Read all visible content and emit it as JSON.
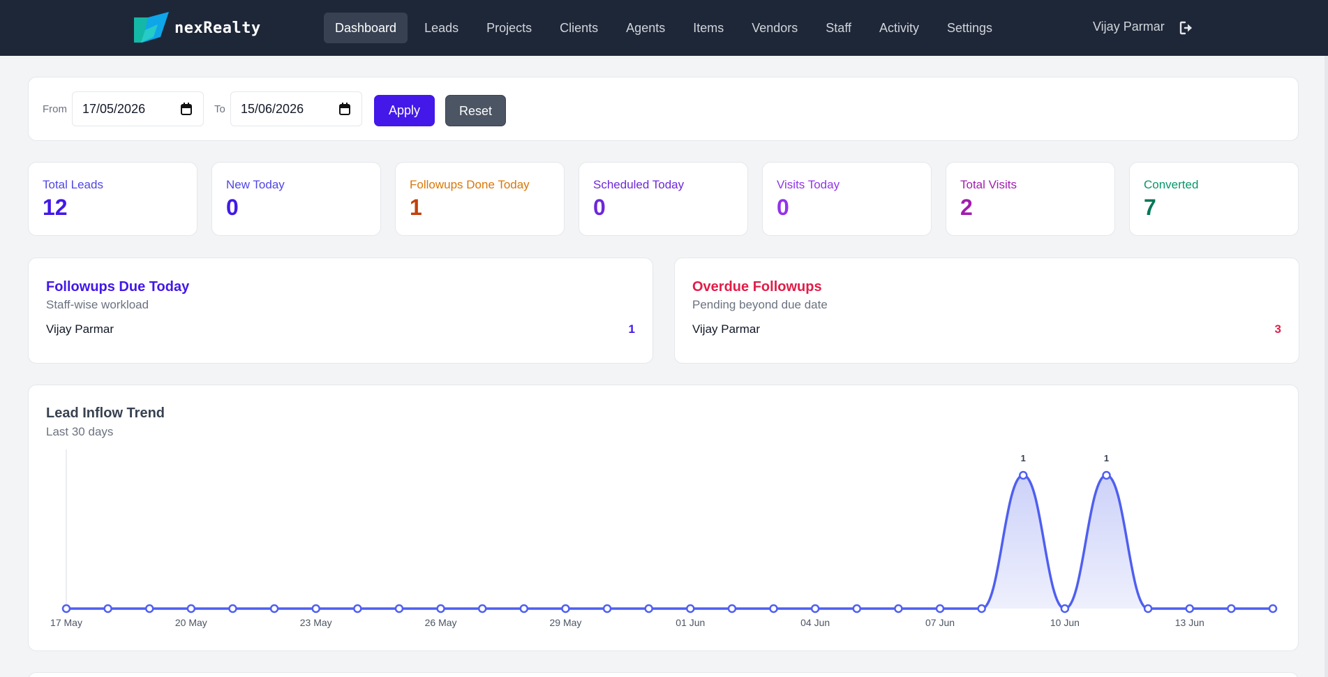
{
  "brand": {
    "name": "nexRealty",
    "logo_icon": "brand-logo-icon",
    "colors": [
      "#14b8a6",
      "#0ea5e9"
    ]
  },
  "nav": {
    "items": [
      {
        "label": "Dashboard",
        "active": true
      },
      {
        "label": "Leads"
      },
      {
        "label": "Projects"
      },
      {
        "label": "Clients"
      },
      {
        "label": "Agents"
      },
      {
        "label": "Items"
      },
      {
        "label": "Vendors"
      },
      {
        "label": "Staff"
      },
      {
        "label": "Activity"
      },
      {
        "label": "Settings"
      }
    ],
    "user": "Vijay Parmar",
    "logout_icon": "logout-icon"
  },
  "filter": {
    "from_label": "From",
    "from_value": "17/05/2026",
    "to_label": "To",
    "to_value": "15/06/2026",
    "apply": "Apply",
    "reset": "Reset",
    "calendar_icon": "calendar-icon"
  },
  "stats": [
    {
      "label": "Total Leads",
      "value": "12",
      "label_color": "#4f46e5",
      "value_color": "#4318e8"
    },
    {
      "label": "New Today",
      "value": "0",
      "label_color": "#4f46e5",
      "value_color": "#4318e8"
    },
    {
      "label": "Followups Done Today",
      "value": "1",
      "label_color": "#d97706",
      "value_color": "#c2410c"
    },
    {
      "label": "Scheduled Today",
      "value": "0",
      "label_color": "#6d28d9",
      "value_color": "#6d28d9"
    },
    {
      "label": "Visits Today",
      "value": "0",
      "label_color": "#9333ea",
      "value_color": "#9333ea"
    },
    {
      "label": "Total Visits",
      "value": "2",
      "label_color": "#a21caf",
      "value_color": "#a21caf"
    },
    {
      "label": "Converted",
      "value": "7",
      "label_color": "#059669",
      "value_color": "#047857"
    }
  ],
  "followups_due": {
    "title": "Followups Due Today",
    "subtitle": "Staff-wise workload",
    "rows": [
      {
        "name": "Vijay Parmar",
        "count": "1"
      }
    ],
    "color": "#4318e8"
  },
  "overdue": {
    "title": "Overdue Followups",
    "subtitle": "Pending beyond due date",
    "rows": [
      {
        "name": "Vijay Parmar",
        "count": "3"
      }
    ],
    "color": "#e11d48"
  },
  "chart": {
    "title": "Lead Inflow Trend",
    "subtitle": "Last 30 days"
  },
  "chart_data": {
    "type": "area",
    "x": [
      "17 May",
      "18 May",
      "19 May",
      "20 May",
      "21 May",
      "22 May",
      "23 May",
      "24 May",
      "25 May",
      "26 May",
      "27 May",
      "28 May",
      "29 May",
      "30 May",
      "31 May",
      "01 Jun",
      "02 Jun",
      "03 Jun",
      "04 Jun",
      "05 Jun",
      "06 Jun",
      "07 Jun",
      "08 Jun",
      "09 Jun",
      "10 Jun",
      "11 Jun",
      "12 Jun",
      "13 Jun",
      "14 Jun",
      "15 Jun"
    ],
    "tick_labels": [
      "17 May",
      "20 May",
      "23 May",
      "26 May",
      "29 May",
      "01 Jun",
      "04 Jun",
      "07 Jun",
      "10 Jun",
      "13 Jun"
    ],
    "values": [
      0,
      0,
      0,
      0,
      0,
      0,
      0,
      0,
      0,
      0,
      0,
      0,
      0,
      0,
      0,
      0,
      0,
      0,
      0,
      0,
      0,
      0,
      0,
      1,
      0,
      1,
      0,
      0,
      0,
      0
    ],
    "data_labels": {
      "23": "1",
      "25": "1"
    },
    "ylim": [
      0,
      1
    ],
    "line_color": "#4f5ff0",
    "fill_color": "#c7cdf8",
    "grid": false
  }
}
